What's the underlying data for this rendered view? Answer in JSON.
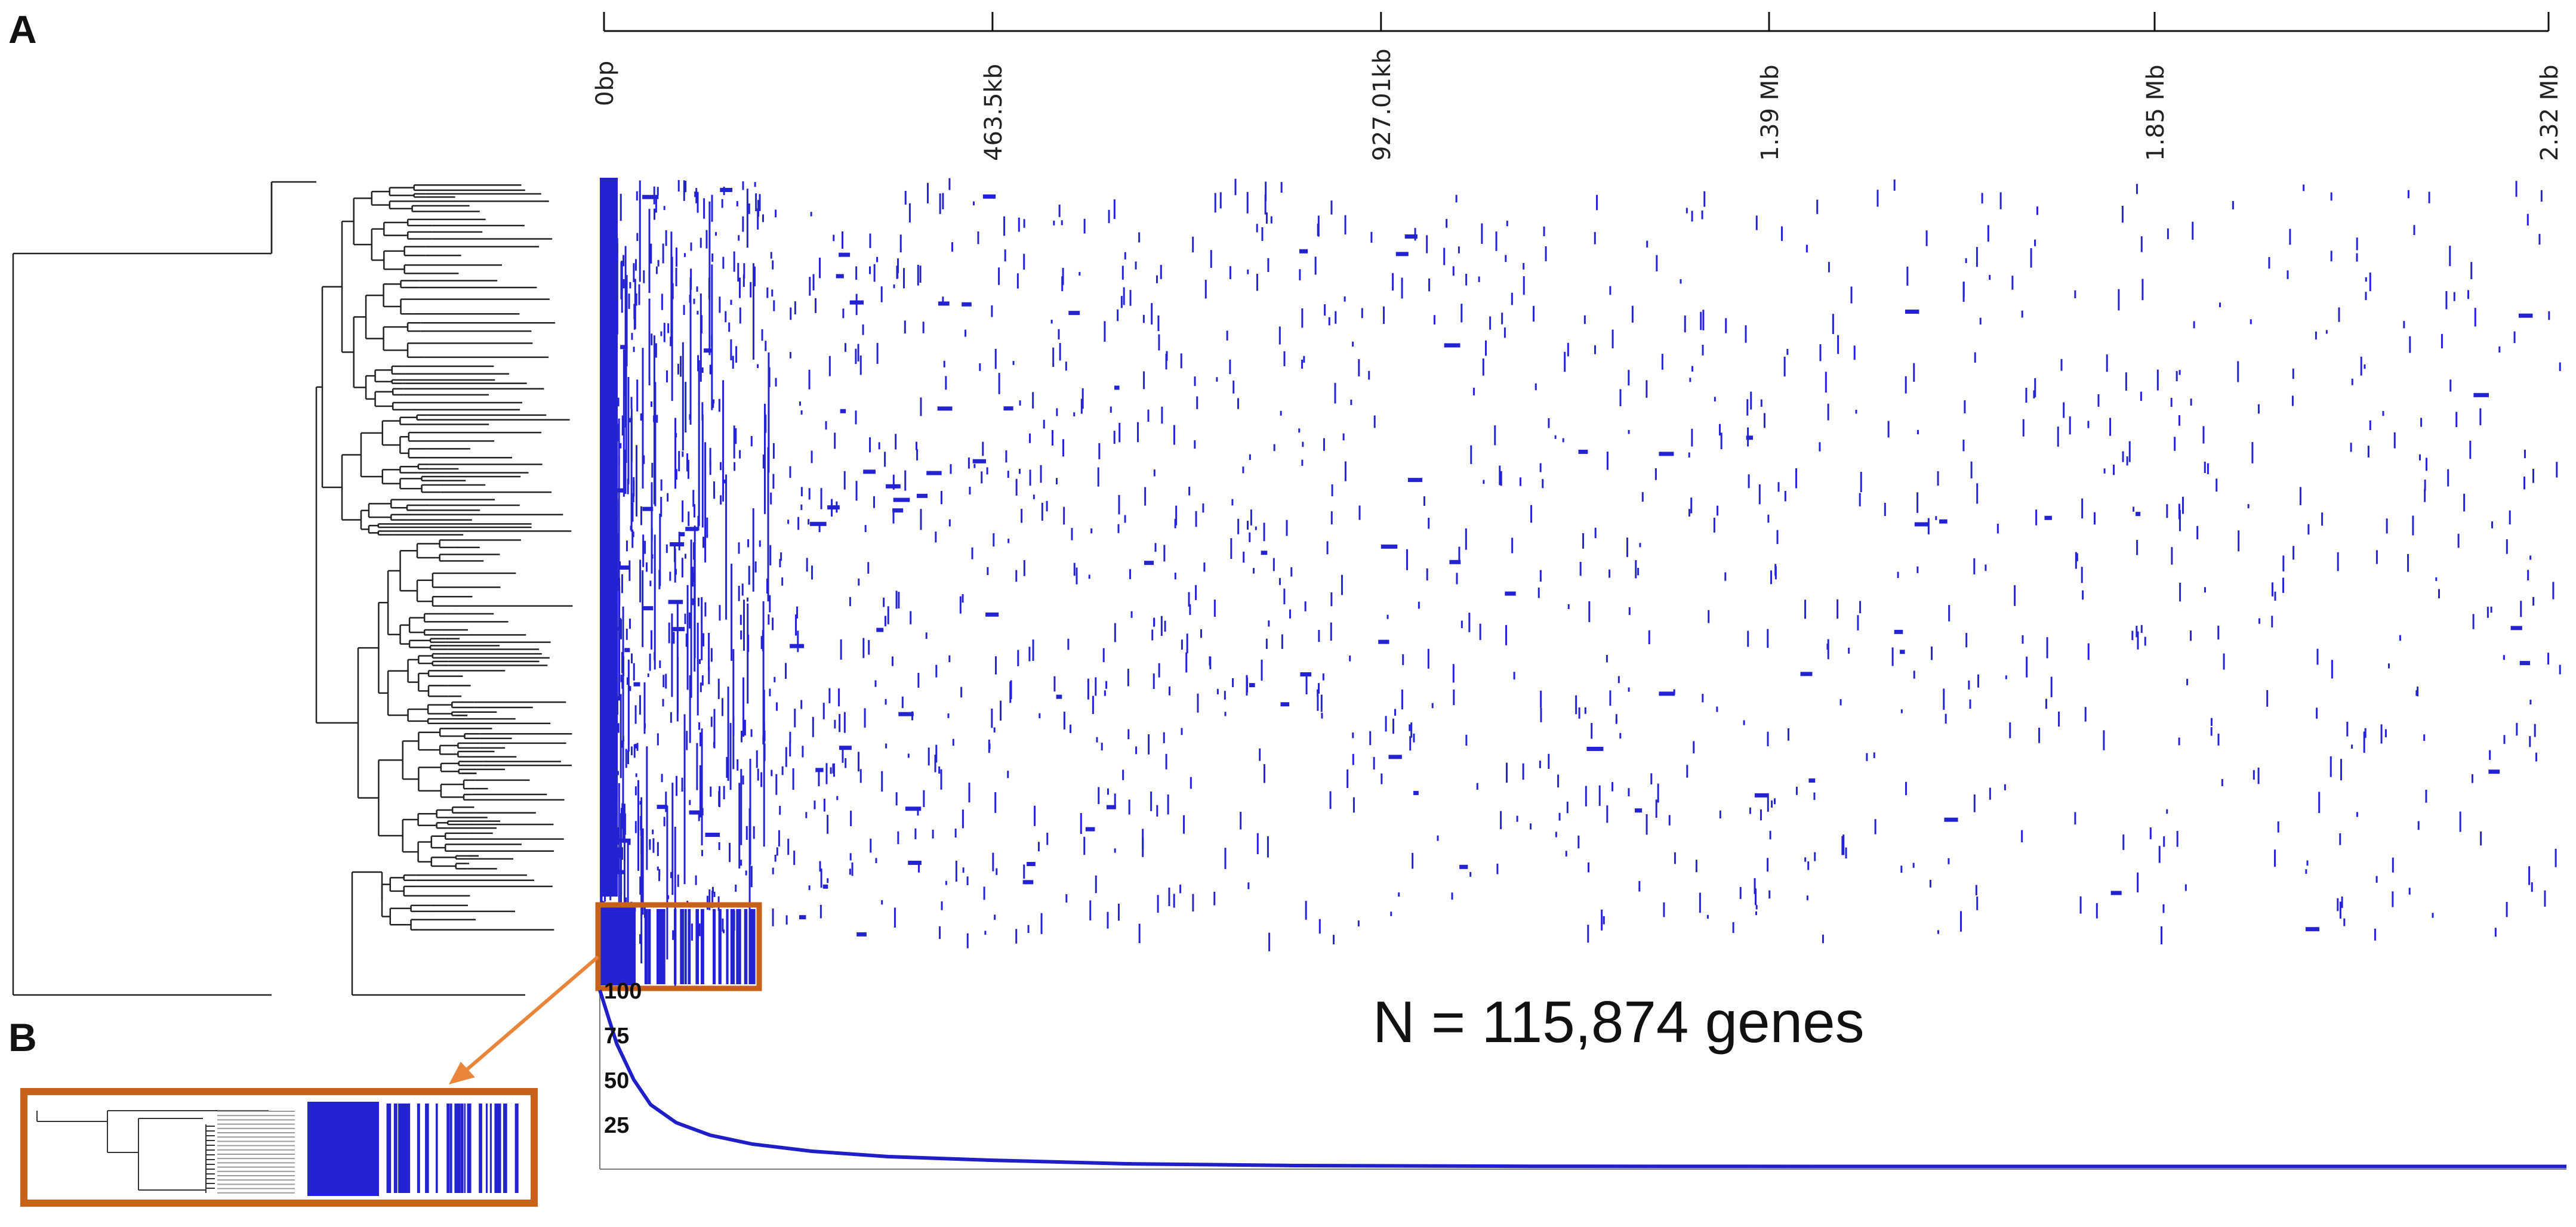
{
  "panels": {
    "a_label": "A",
    "b_label": "B"
  },
  "annotation": "N = 115,874 genes",
  "colors": {
    "presence": "#2323d2",
    "tree": "#222222",
    "highlight": "#c8621a",
    "arrow": "#e8853a"
  },
  "chart_data": [
    {
      "type": "heatmap",
      "description_of_content": "Gene presence/absence matrix ordered by phylogeny",
      "x_axis": {
        "scale": "genomic position",
        "ticks": [
          "0bp",
          "463.5kb",
          "927.01kb",
          "1.39 Mb",
          "1.85 Mb",
          "2.32 Mb"
        ],
        "tick_values_bp": [
          0,
          463500,
          927010,
          1390000,
          1850000,
          2320000
        ],
        "range_bp": [
          0,
          2320000
        ]
      },
      "total_genes": 115874
    },
    {
      "type": "area",
      "y_ticks": [
        "100",
        "75",
        "50",
        "25"
      ],
      "y_range": [
        0,
        100
      ],
      "x_range_bp": [
        0,
        2320000
      ],
      "points": [
        [
          0,
          100
        ],
        [
          20000,
          70
        ],
        [
          40000,
          50
        ],
        [
          60000,
          36
        ],
        [
          90000,
          26
        ],
        [
          130000,
          19
        ],
        [
          180000,
          14
        ],
        [
          250000,
          10
        ],
        [
          340000,
          7
        ],
        [
          460000,
          5
        ],
        [
          620000,
          3
        ],
        [
          820000,
          2
        ],
        [
          1100000,
          1.6
        ],
        [
          1500000,
          1.5
        ],
        [
          2320000,
          1.5
        ]
      ]
    }
  ]
}
